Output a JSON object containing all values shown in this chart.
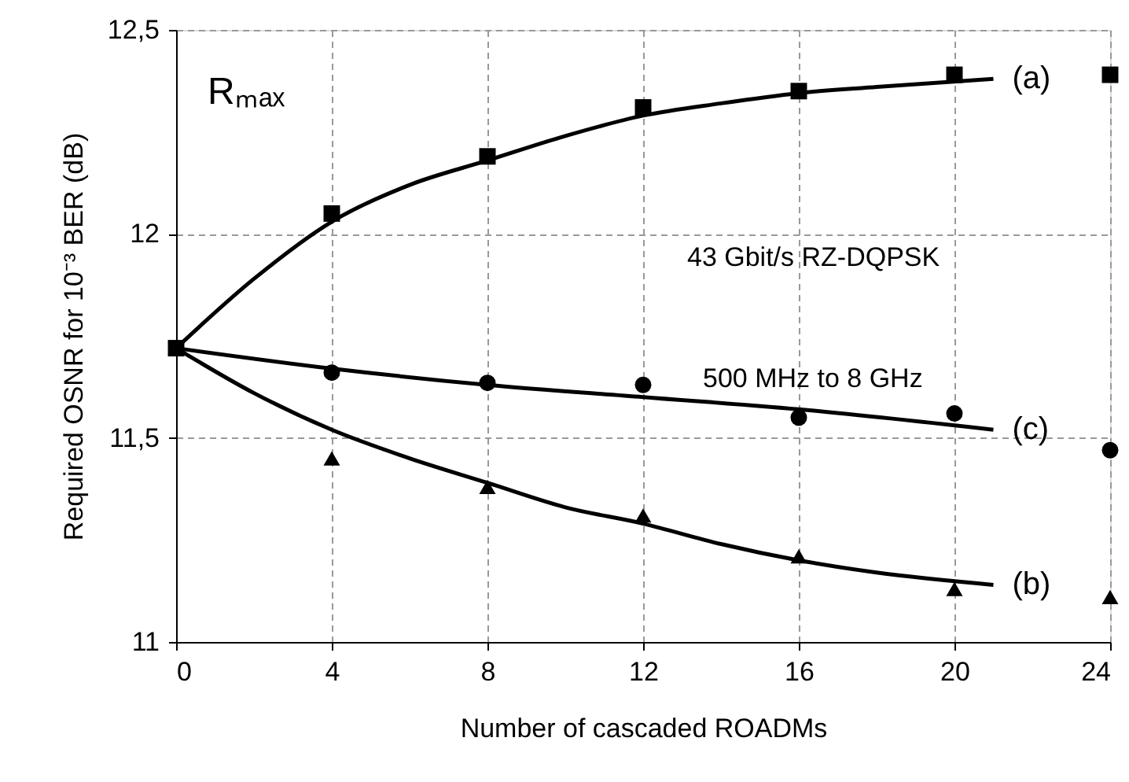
{
  "chart_data": {
    "type": "scatter",
    "xlabel": "Number of cascaded ROADMs",
    "ylabel": "Required OSNR for 10⁻³ BER  (dB)",
    "x": [
      0,
      4,
      8,
      12,
      16,
      20,
      24
    ],
    "xlim": [
      0,
      24
    ],
    "xticks": [
      0,
      4,
      8,
      12,
      16,
      20,
      24
    ],
    "ylim": [
      11,
      12.5
    ],
    "yticks": [
      11,
      {
        "value": 11.5,
        "label": "11,5"
      },
      12,
      {
        "value": 12.5,
        "label": "12,5"
      }
    ],
    "grid": true,
    "series": [
      {
        "marker": "square",
        "color": "#000000",
        "values": [
          11.72,
          12.05,
          12.19,
          12.31,
          12.35,
          12.39,
          12.39
        ]
      },
      {
        "marker": "circle",
        "color": "#000000",
        "values": [
          null,
          11.66,
          11.635,
          11.63,
          11.55,
          11.56,
          11.47
        ]
      },
      {
        "marker": "triangle",
        "color": "#000000",
        "values": [
          null,
          11.45,
          11.38,
          11.31,
          11.21,
          11.13,
          11.11
        ]
      },
      {
        "type": "line",
        "name": "(a)",
        "color": "#000000",
        "x": [
          0,
          2,
          4,
          6,
          8,
          10,
          12,
          14,
          16,
          18,
          21
        ],
        "values": [
          11.72,
          11.89,
          12.03,
          12.12,
          12.18,
          12.24,
          12.29,
          12.32,
          12.345,
          12.36,
          12.38
        ]
      },
      {
        "type": "line",
        "name": "(c)",
        "color": "#000000",
        "x": [
          0,
          4,
          8,
          12,
          16,
          21
        ],
        "values": [
          11.72,
          11.67,
          11.63,
          11.6,
          11.57,
          11.52
        ]
      },
      {
        "type": "line",
        "name": "(b)",
        "color": "#000000",
        "x": [
          0,
          2,
          4,
          6,
          8,
          10,
          12,
          14,
          16,
          18,
          21
        ],
        "values": [
          11.72,
          11.61,
          11.52,
          11.45,
          11.39,
          11.33,
          11.29,
          11.24,
          11.2,
          11.17,
          11.14
        ]
      }
    ],
    "annotations": [
      "Rₘₐₓ",
      "43 Gbit/s RZ-DQPSK",
      "500 MHz to 8 GHz"
    ]
  }
}
